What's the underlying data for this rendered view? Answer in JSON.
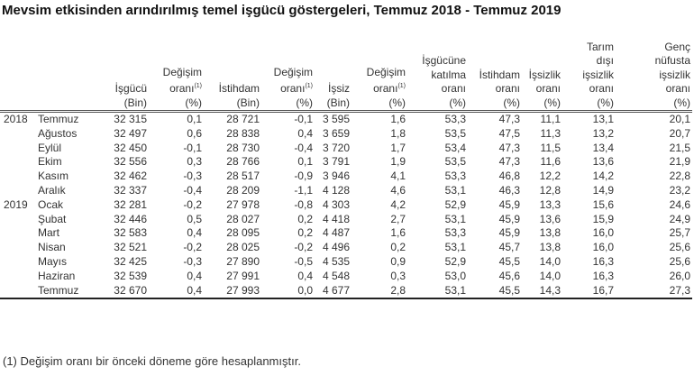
{
  "title": "Mevsim etkisinden arındırılmış temel işgücü göstergeleri, Temmuz 2018 - Temmuz 2019",
  "columns": [
    {
      "lines": [
        "İşgücü",
        "(Bin)"
      ]
    },
    {
      "lines": [
        "Değişim",
        "oranı",
        "(%)"
      ],
      "sup": "(1)"
    },
    {
      "lines": [
        "İstihdam",
        "(Bin)"
      ]
    },
    {
      "lines": [
        "Değişim",
        "oranı",
        "(%)"
      ],
      "sup": "(1)"
    },
    {
      "lines": [
        "İşsiz",
        "(Bin)"
      ]
    },
    {
      "lines": [
        "Değişim",
        "oranı",
        "(%)"
      ],
      "sup": "(1)"
    },
    {
      "lines": [
        "İşgücüne",
        "katılma",
        "oranı",
        "(%)"
      ]
    },
    {
      "lines": [
        "İstihdam",
        "oranı",
        "(%)"
      ]
    },
    {
      "lines": [
        "İşsizlik",
        "oranı",
        "(%)"
      ]
    },
    {
      "lines": [
        "Tarım",
        "dışı",
        "işsizlik",
        "oranı",
        "(%)"
      ]
    },
    {
      "lines": [
        "Genç",
        "nüfusta",
        "işsizlik",
        "oranı",
        "(%)"
      ]
    }
  ],
  "rows": [
    {
      "year": "2018",
      "month": "Temmuz",
      "values": [
        "32 315",
        "0,1",
        "28 721",
        "-0,1",
        "3 595",
        "1,6",
        "53,3",
        "47,3",
        "11,1",
        "13,1",
        "20,1"
      ]
    },
    {
      "year": "",
      "month": "Ağustos",
      "values": [
        "32 497",
        "0,6",
        "28 838",
        "0,4",
        "3 659",
        "1,8",
        "53,5",
        "47,5",
        "11,3",
        "13,2",
        "20,7"
      ]
    },
    {
      "year": "",
      "month": "Eylül",
      "values": [
        "32 450",
        "-0,1",
        "28 730",
        "-0,4",
        "3 720",
        "1,7",
        "53,4",
        "47,3",
        "11,5",
        "13,4",
        "21,5"
      ]
    },
    {
      "year": "",
      "month": "Ekim",
      "values": [
        "32 556",
        "0,3",
        "28 766",
        "0,1",
        "3 791",
        "1,9",
        "53,5",
        "47,3",
        "11,6",
        "13,6",
        "21,9"
      ]
    },
    {
      "year": "",
      "month": "Kasım",
      "values": [
        "32 462",
        "-0,3",
        "28 517",
        "-0,9",
        "3 946",
        "4,1",
        "53,3",
        "46,8",
        "12,2",
        "14,2",
        "22,8"
      ]
    },
    {
      "year": "",
      "month": "Aralık",
      "values": [
        "32 337",
        "-0,4",
        "28 209",
        "-1,1",
        "4 128",
        "4,6",
        "53,1",
        "46,3",
        "12,8",
        "14,9",
        "23,2"
      ]
    },
    {
      "year": "2019",
      "month": "Ocak",
      "values": [
        "32 281",
        "-0,2",
        "27 978",
        "-0,8",
        "4 303",
        "4,2",
        "52,9",
        "45,9",
        "13,3",
        "15,6",
        "24,6"
      ]
    },
    {
      "year": "",
      "month": "Şubat",
      "values": [
        "32 446",
        "0,5",
        "28 027",
        "0,2",
        "4 418",
        "2,7",
        "53,1",
        "45,9",
        "13,6",
        "15,9",
        "24,9"
      ]
    },
    {
      "year": "",
      "month": "Mart",
      "values": [
        "32 583",
        "0,4",
        "28 095",
        "0,2",
        "4 487",
        "1,6",
        "53,3",
        "45,9",
        "13,8",
        "16,0",
        "25,7"
      ]
    },
    {
      "year": "",
      "month": "Nisan",
      "values": [
        "32 521",
        "-0,2",
        "28 025",
        "-0,2",
        "4 496",
        "0,2",
        "53,1",
        "45,7",
        "13,8",
        "16,0",
        "25,6"
      ]
    },
    {
      "year": "",
      "month": "Mayıs",
      "values": [
        "32 425",
        "-0,3",
        "27 890",
        "-0,5",
        "4 535",
        "0,9",
        "52,9",
        "45,5",
        "14,0",
        "16,3",
        "25,6"
      ]
    },
    {
      "year": "",
      "month": "Haziran",
      "values": [
        "32 539",
        "0,4",
        "27 991",
        "0,4",
        "4 548",
        "0,3",
        "53,0",
        "45,6",
        "14,0",
        "16,3",
        "26,0"
      ]
    },
    {
      "year": "",
      "month": "Temmuz",
      "values": [
        "32 670",
        "0,4",
        "27 993",
        "0,0",
        "4 677",
        "2,8",
        "53,1",
        "45,5",
        "14,3",
        "16,7",
        "27,3"
      ]
    }
  ],
  "footnote": "(1) Değişim oranı bir önceki döneme göre hesaplanmıştır."
}
